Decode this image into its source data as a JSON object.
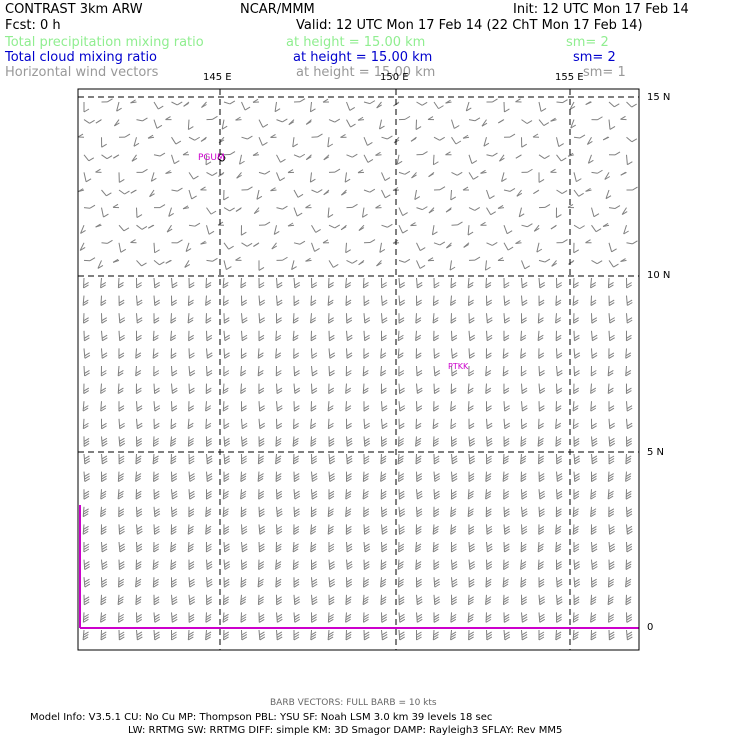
{
  "header": {
    "model": "CONTRAST  3km ARW",
    "org": "NCAR/MMM",
    "init": "Init: 12 UTC Mon 17 Feb 14",
    "fcst": "Fcst:     0 h",
    "valid": "Valid: 12 UTC Mon 17 Feb 14 (22 ChT Mon 17 Feb 14)"
  },
  "fields": [
    {
      "name": "Total precipitation mixing ratio",
      "height": "at height = 15.00 km",
      "sm": "sm= 2",
      "color": "#90ee90"
    },
    {
      "name": "Total cloud mixing ratio",
      "height": "at height = 15.00 km",
      "sm": "sm= 2",
      "color": "#0000cd"
    },
    {
      "name": "Horizontal wind vectors",
      "height": "at height = 15.00 km",
      "sm": "sm= 1",
      "color": "#999999"
    }
  ],
  "map": {
    "lon_labels": [
      "145 E",
      "150 E",
      "155 E"
    ],
    "lat_labels": [
      "15 N",
      "10 N",
      "5 N",
      "0"
    ],
    "stations": [
      "PGUM",
      "PTKK"
    ],
    "colors": {
      "grid": "#000000",
      "barb": "#808080",
      "station": "#cc00cc",
      "coast": "#cc00cc"
    }
  },
  "footer": {
    "barb": "BARB VECTORS:  FULL BARB = 10 kts",
    "info1": "Model Info: V3.5.1    CU: No Cu     MP: Thompson     PBL: YSU       SF: Noah LSM      3.0 km   39 levels    18 sec",
    "info2": "LW: RRTMG    SW: RRTMG   DIFF: simple KM: 3D Smagor DAMP: Rayleigh3   SFLAY: Rev MM5"
  }
}
